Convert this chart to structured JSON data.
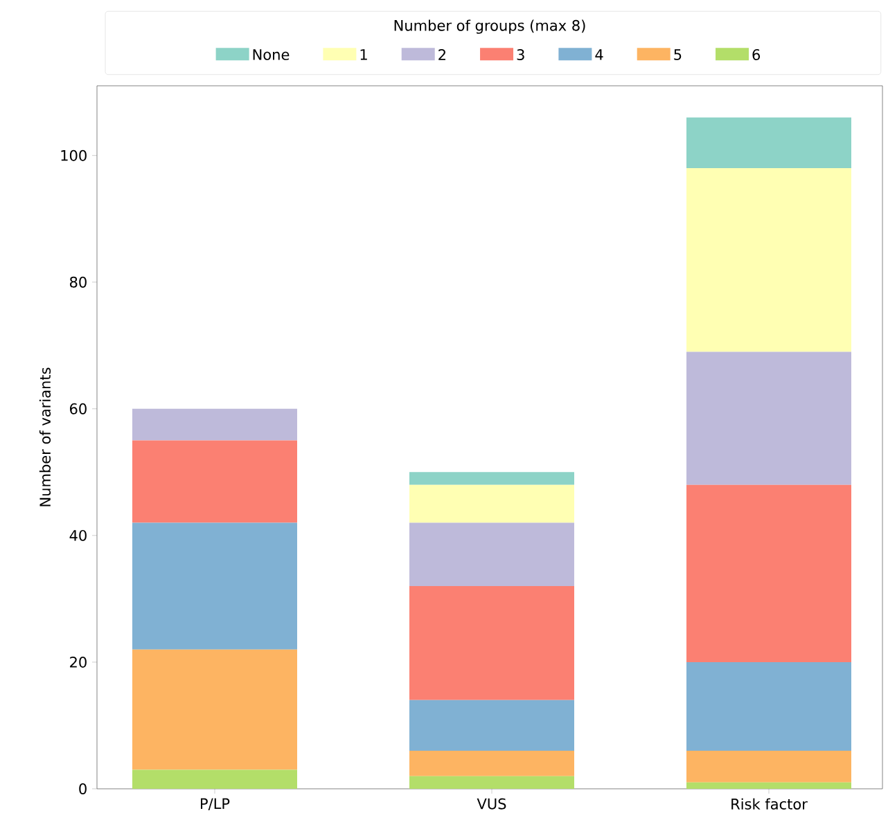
{
  "chart_data": {
    "type": "bar",
    "stacked": true,
    "ylabel": "Number of variants",
    "legend_title": "Number of groups (max 8)",
    "legend": "top",
    "categories": [
      "P/LP",
      "VUS",
      "Risk factor"
    ],
    "series": [
      {
        "name": "6",
        "color": "#b3de69",
        "values": [
          3,
          2,
          1
        ]
      },
      {
        "name": "5",
        "color": "#fdb462",
        "values": [
          19,
          4,
          5
        ]
      },
      {
        "name": "4",
        "color": "#80b1d3",
        "values": [
          20,
          8,
          14
        ]
      },
      {
        "name": "3",
        "color": "#fb8072",
        "values": [
          13,
          18,
          28
        ]
      },
      {
        "name": "2",
        "color": "#bebada",
        "values": [
          5,
          10,
          21
        ]
      },
      {
        "name": "1",
        "color": "#ffffb3",
        "values": [
          0,
          6,
          29
        ]
      },
      {
        "name": "None",
        "color": "#8dd3c7",
        "values": [
          0,
          2,
          8
        ]
      }
    ],
    "ylim": [
      0,
      111
    ],
    "yticks": [
      0,
      20,
      40,
      60,
      80,
      100
    ]
  }
}
